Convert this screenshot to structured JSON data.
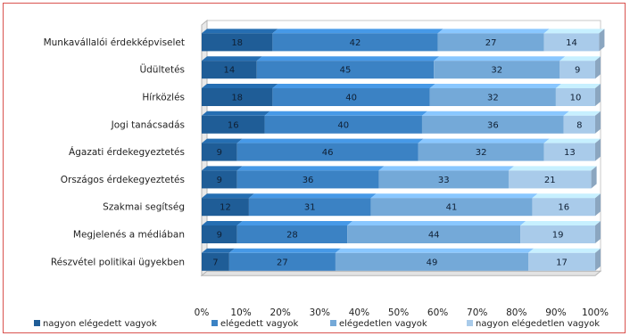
{
  "chart_data": {
    "type": "bar",
    "orientation": "horizontal",
    "stacked": true,
    "percent_stacked": true,
    "categories": [
      "Munkavállalói érdekképviselet",
      "Üdültetés",
      "Hírközlés",
      "Jogi tanácsadás",
      "Ágazati érdekegyeztetés",
      "Országos érdekegyeztetés",
      "Szakmai segítség",
      "Megjelenés a médiában",
      "Részvétel politikai ügyekben"
    ],
    "series": [
      {
        "name": "nagyon elégedett vagyok",
        "values": [
          18,
          14,
          18,
          16,
          9,
          9,
          12,
          9,
          7
        ],
        "color": "#1f5d97"
      },
      {
        "name": "elégedett vagyok",
        "values": [
          42,
          45,
          40,
          40,
          46,
          36,
          31,
          28,
          27
        ],
        "color": "#3b82c4"
      },
      {
        "name": "elégedetlen vagyok",
        "values": [
          27,
          32,
          32,
          36,
          32,
          33,
          41,
          44,
          49
        ],
        "color": "#74a9d8"
      },
      {
        "name": "nagyon elégedetlen vagyok",
        "values": [
          14,
          9,
          10,
          8,
          13,
          21,
          16,
          19,
          17
        ],
        "color": "#a9cbea"
      }
    ],
    "x_ticks": [
      "0%",
      "10%",
      "20%",
      "30%",
      "40%",
      "50%",
      "60%",
      "70%",
      "80%",
      "90%",
      "100%"
    ],
    "xlim": [
      0,
      100
    ],
    "grid": false,
    "legend_position": "bottom"
  }
}
